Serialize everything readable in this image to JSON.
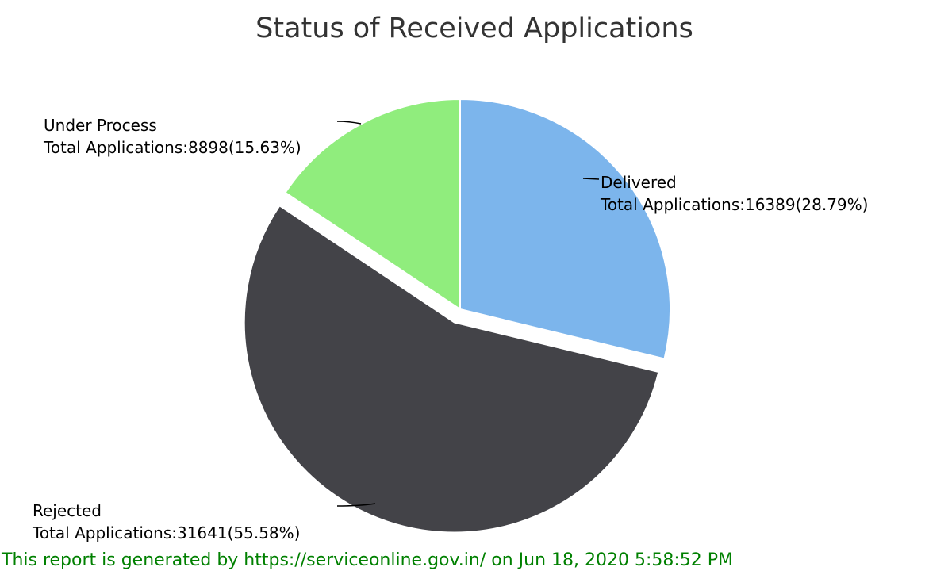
{
  "chart_data": {
    "type": "pie",
    "title": "Status of Received Applications",
    "slices": [
      {
        "name": "Delivered",
        "value": 16389,
        "percent": 28.79,
        "line1": "Delivered",
        "line2": "Total Applications:16389(28.79%)",
        "color": "#7cb5ec",
        "exploded": false
      },
      {
        "name": "Rejected",
        "value": 31641,
        "percent": 55.58,
        "line1": "Rejected",
        "line2": "Total Applications:31641(55.58%)",
        "color": "#434348",
        "exploded": true
      },
      {
        "name": "Under Process",
        "value": 8898,
        "percent": 15.63,
        "line1": "Under Process",
        "line2": "Total Applications:8898(15.63%)",
        "color": "#90ed7d",
        "exploded": false
      }
    ]
  },
  "footer": {
    "text": "This report is generated by https://serviceonline.gov.in/ on Jun 18, 2020 5:58:52 PM",
    "color": "#008000"
  }
}
